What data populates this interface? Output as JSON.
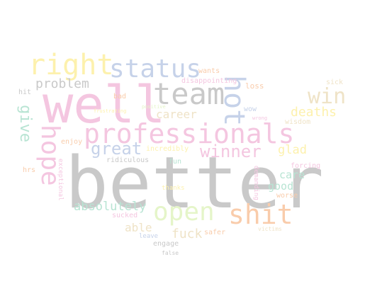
{
  "words": [
    {
      "text": "better",
      "color": "#c9c9c9"
    },
    {
      "text": "well",
      "color": "#f4c6e0"
    },
    {
      "text": "professionals",
      "color": "#f4c6e0"
    },
    {
      "text": "right",
      "color": "#fdf1ad"
    },
    {
      "text": "status",
      "color": "#c6d2e9"
    },
    {
      "text": "team",
      "color": "#c9c9c9"
    },
    {
      "text": "hot",
      "color": "#c6d2e9"
    },
    {
      "text": "hope",
      "color": "#f4c6e0"
    },
    {
      "text": "give",
      "color": "#b8e4d3"
    },
    {
      "text": "open",
      "color": "#e5f5c9"
    },
    {
      "text": "shit",
      "color": "#f9ccab"
    },
    {
      "text": "win",
      "color": "#efe3c7"
    },
    {
      "text": "winner",
      "color": "#f4c6e0"
    },
    {
      "text": "great",
      "color": "#c6d2e9"
    },
    {
      "text": "problem",
      "color": "#c9c9c9"
    },
    {
      "text": "career",
      "color": "#efe3c7"
    },
    {
      "text": "deaths",
      "color": "#fdf1ad"
    },
    {
      "text": "absolutely",
      "color": "#b8e4d3"
    },
    {
      "text": "glad",
      "color": "#fdf1ad"
    },
    {
      "text": "fuck",
      "color": "#efe3c7"
    },
    {
      "text": "able",
      "color": "#efe3c7"
    },
    {
      "text": "care",
      "color": "#b8e4d3"
    },
    {
      "text": "good",
      "color": "#b8e4d3"
    },
    {
      "text": "wants",
      "color": "#f9ccab"
    },
    {
      "text": "disappointing",
      "color": "#f4c6e0"
    },
    {
      "text": "loss",
      "color": "#f9ccab"
    },
    {
      "text": "sick",
      "color": "#efe3c7"
    },
    {
      "text": "hit",
      "color": "#c9c9c9"
    },
    {
      "text": "bad",
      "color": "#f9ccab"
    },
    {
      "text": "positive",
      "color": "#e5f5c9"
    },
    {
      "text": "wow",
      "color": "#c6d2e9"
    },
    {
      "text": "frustrating",
      "color": "#fdf1ad"
    },
    {
      "text": "wrong",
      "color": "#f4c6e0"
    },
    {
      "text": "wisdom",
      "color": "#efe3c7"
    },
    {
      "text": "enjoy",
      "color": "#f9ccab"
    },
    {
      "text": "incredibly",
      "color": "#fdf1ad"
    },
    {
      "text": "ridiculous",
      "color": "#c9c9c9"
    },
    {
      "text": "fun",
      "color": "#b8e4d3"
    },
    {
      "text": "hrs",
      "color": "#f9ccab"
    },
    {
      "text": "exceptional",
      "color": "#f4c6e0"
    },
    {
      "text": "forcing",
      "color": "#f4c6e0"
    },
    {
      "text": "thanks",
      "color": "#fdf1ad"
    },
    {
      "text": "demanding",
      "color": "#f4c6e0"
    },
    {
      "text": "worse",
      "color": "#f9ccab"
    },
    {
      "text": "sucked",
      "color": "#f4c6e0"
    },
    {
      "text": "leave",
      "color": "#c6d2e9"
    },
    {
      "text": "engage",
      "color": "#c9c9c9"
    },
    {
      "text": "safer",
      "color": "#f9ccab"
    },
    {
      "text": "victims",
      "color": "#efe3c7"
    },
    {
      "text": "false",
      "color": "#c9c9c9"
    }
  ]
}
